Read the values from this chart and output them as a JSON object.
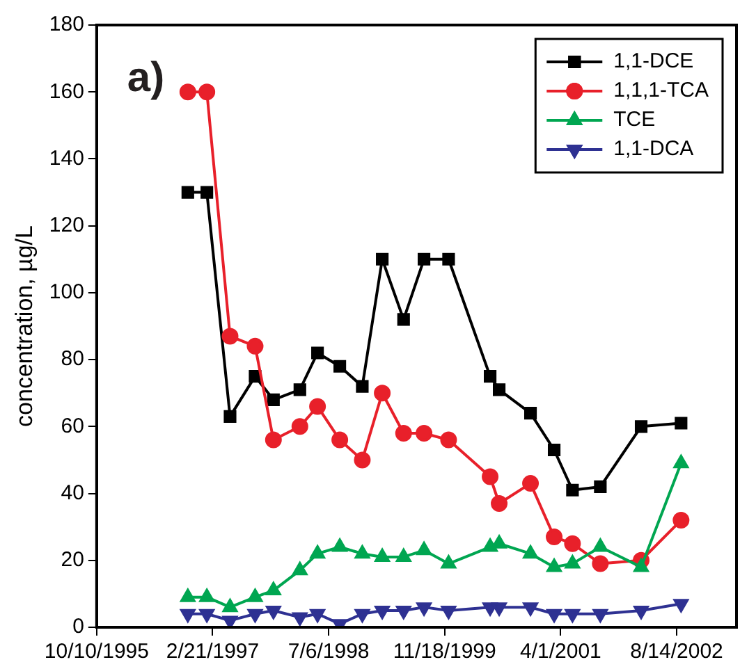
{
  "chart_data": {
    "type": "line",
    "ylabel": "concentration, µg/L",
    "annotations": [
      "a)"
    ],
    "x": [
      "1996-11-06",
      "1997-01-27",
      "1997-05-07",
      "1997-08-23",
      "1997-11-10",
      "1998-03-04",
      "1998-05-19",
      "1998-08-23",
      "1998-11-28",
      "1999-02-22",
      "1999-05-25",
      "1999-08-21",
      "1999-12-05",
      "2000-06-01",
      "2000-07-10",
      "2000-11-22",
      "2001-03-04",
      "2001-05-22",
      "2001-09-19",
      "2002-03-14",
      "2002-09-02"
    ],
    "series": [
      {
        "name": "1,1-DCE",
        "color": "#000000",
        "marker": "square",
        "values": [
          130,
          130,
          63,
          75,
          68,
          71,
          82,
          78,
          72,
          110,
          92,
          110,
          110,
          75,
          71,
          64,
          53,
          41,
          42,
          60,
          61
        ]
      },
      {
        "name": "1,1,1-TCA",
        "color": "#e8202a",
        "marker": "circle",
        "values": [
          160,
          160,
          87,
          84,
          56,
          60,
          66,
          56,
          50,
          70,
          58,
          58,
          56,
          45,
          37,
          43,
          27,
          25,
          19,
          20,
          32
        ]
      },
      {
        "name": "TCE",
        "color": "#00a651",
        "marker": "triangle",
        "values": [
          9,
          9,
          6,
          9,
          11,
          17,
          22,
          24,
          22,
          21,
          21,
          23,
          19,
          24,
          25,
          22,
          18,
          19,
          24,
          18,
          49
        ]
      },
      {
        "name": "1,1-DCA",
        "color": "#2e3192",
        "marker": "triangle-down",
        "values": [
          4,
          4,
          2,
          4,
          5,
          3,
          4,
          1,
          4,
          5,
          5,
          6,
          5,
          6,
          6,
          6,
          4,
          4,
          4,
          5,
          7
        ]
      }
    ],
    "xlim": [
      "1995-10-10",
      "2003-04-29"
    ],
    "xticks": [
      {
        "value": "1995-10-10",
        "label": "10/10/1995"
      },
      {
        "value": "1997-02-21",
        "label": "2/21/1997"
      },
      {
        "value": "1998-07-06",
        "label": "7/6/1998"
      },
      {
        "value": "1999-11-18",
        "label": "11/18/1999"
      },
      {
        "value": "2001-04-01",
        "label": "4/1/2001"
      },
      {
        "value": "2002-08-14",
        "label": "8/14/2002"
      }
    ],
    "ylim": [
      0,
      180
    ],
    "yticks": [
      0,
      20,
      40,
      60,
      80,
      100,
      120,
      140,
      160,
      180
    ],
    "legend": "top right",
    "grid": false,
    "line_style": "solid"
  }
}
